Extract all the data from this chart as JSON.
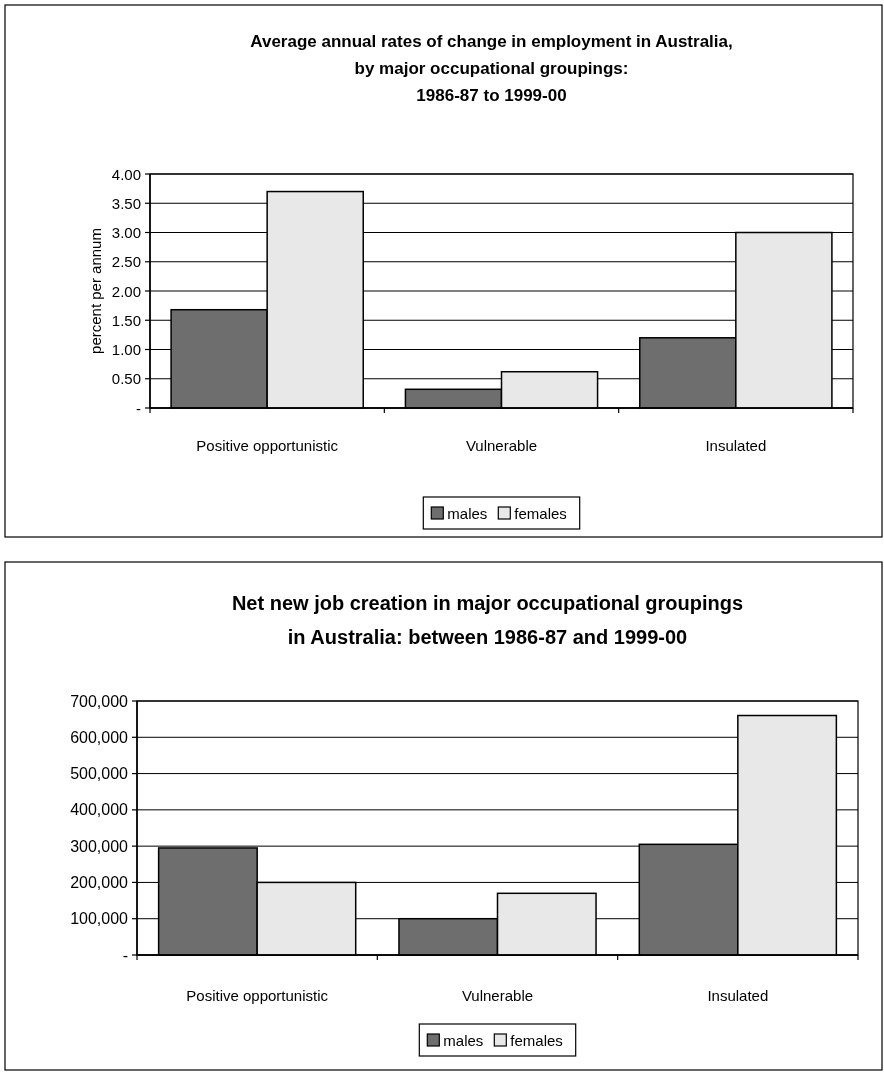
{
  "chart_data": [
    {
      "type": "bar",
      "title": "Average annual rates of change in employment in Australia,\nby major occupational groupings:\n1986-87 to 1999-00",
      "ylabel": "percent per annum",
      "categories": [
        "Positive opportunistic",
        "Vulnerable",
        "Insulated"
      ],
      "series": [
        {
          "name": "males",
          "color": "#6e6e6e",
          "values": [
            1.68,
            0.32,
            1.2
          ]
        },
        {
          "name": "females",
          "color": "#e8e8e8",
          "values": [
            3.7,
            0.62,
            3.0
          ]
        }
      ],
      "ylim": [
        0,
        4
      ],
      "yticks": [
        {
          "value": 0,
          "label": "-"
        },
        {
          "value": 0.5,
          "label": "0.50"
        },
        {
          "value": 1,
          "label": "1.00"
        },
        {
          "value": 1.5,
          "label": "1.50"
        },
        {
          "value": 2,
          "label": "2.00"
        },
        {
          "value": 2.5,
          "label": "2.50"
        },
        {
          "value": 3,
          "label": "3.00"
        },
        {
          "value": 3.5,
          "label": "3.50"
        },
        {
          "value": 4,
          "label": "4.00"
        }
      ],
      "grid": "y",
      "legend": "bottom"
    },
    {
      "type": "bar",
      "title": "Net new job creation in major occupational groupings\nin Australia: between 1986-87 and 1999-00",
      "categories": [
        "Positive opportunistic",
        "Vulnerable",
        "Insulated"
      ],
      "series": [
        {
          "name": "males",
          "color": "#6e6e6e",
          "values": [
            295000,
            100000,
            305000
          ]
        },
        {
          "name": "females",
          "color": "#e8e8e8",
          "values": [
            200000,
            170000,
            660000
          ]
        }
      ],
      "ylim": [
        0,
        700000
      ],
      "yticks": [
        {
          "value": 0,
          "label": "-"
        },
        {
          "value": 100000,
          "label": "100,000"
        },
        {
          "value": 200000,
          "label": "200,000"
        },
        {
          "value": 300000,
          "label": "300,000"
        },
        {
          "value": 400000,
          "label": "400,000"
        },
        {
          "value": 500000,
          "label": "500,000"
        },
        {
          "value": 600000,
          "label": "600,000"
        },
        {
          "value": 700000,
          "label": "700,000"
        }
      ],
      "grid": "y",
      "legend": "bottom"
    }
  ]
}
